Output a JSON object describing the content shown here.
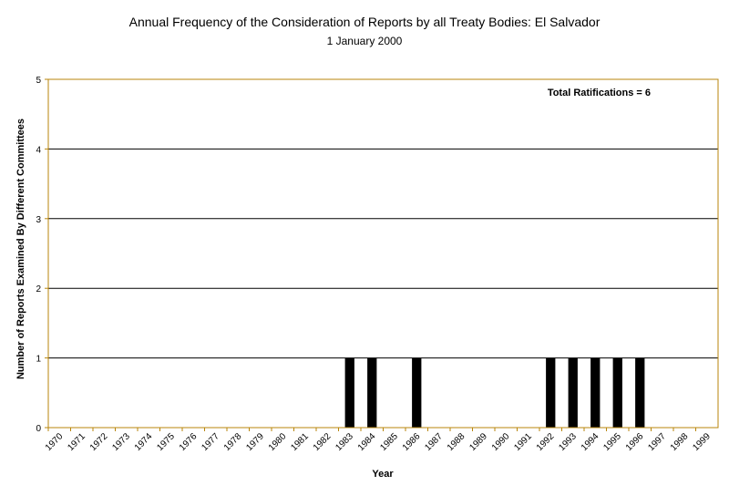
{
  "chart_data": {
    "type": "bar",
    "title": "Annual Frequency of the Consideration of Reports by all Treaty Bodies: El Salvador",
    "subtitle": "1 January 2000",
    "xlabel": "Year",
    "ylabel": "Number of Reports Examined By Different Committees",
    "ylim": [
      0,
      5
    ],
    "yticks": [
      0,
      1,
      2,
      3,
      4,
      5
    ],
    "grid": true,
    "annotation": "Total Ratifications = 6",
    "categories": [
      "1970",
      "1971",
      "1972",
      "1973",
      "1974",
      "1975",
      "1976",
      "1977",
      "1978",
      "1979",
      "1980",
      "1981",
      "1982",
      "1983",
      "1984",
      "1985",
      "1986",
      "1987",
      "1988",
      "1989",
      "1990",
      "1991",
      "1992",
      "1993",
      "1994",
      "1995",
      "1996",
      "1997",
      "1998",
      "1999"
    ],
    "values": [
      0,
      0,
      0,
      0,
      0,
      0,
      0,
      0,
      0,
      0,
      0,
      0,
      0,
      1,
      1,
      0,
      1,
      0,
      0,
      0,
      0,
      0,
      1,
      1,
      1,
      1,
      1,
      0,
      0,
      0
    ],
    "colors": {
      "bar": "#000000",
      "frame": "#b8860b",
      "grid": "#000000",
      "tick_label": "#000000"
    }
  }
}
